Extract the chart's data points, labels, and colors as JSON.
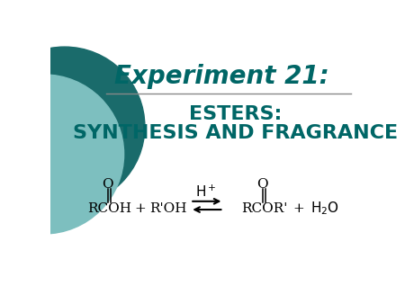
{
  "title": "Experiment 21:",
  "title_color": "#006666",
  "subtitle1": "ESTERS:",
  "subtitle2": "SYNTHESIS AND FRAGRANCE",
  "subtitle_color": "#006666",
  "bg_color": "#ffffff",
  "circle_outer_color": "#1a6b6b",
  "circle_inner_color": "#7dbfbf",
  "line_color": "#888888",
  "title_fontsize": 20,
  "subtitle_fontsize": 16,
  "eq_fontsize": 11
}
